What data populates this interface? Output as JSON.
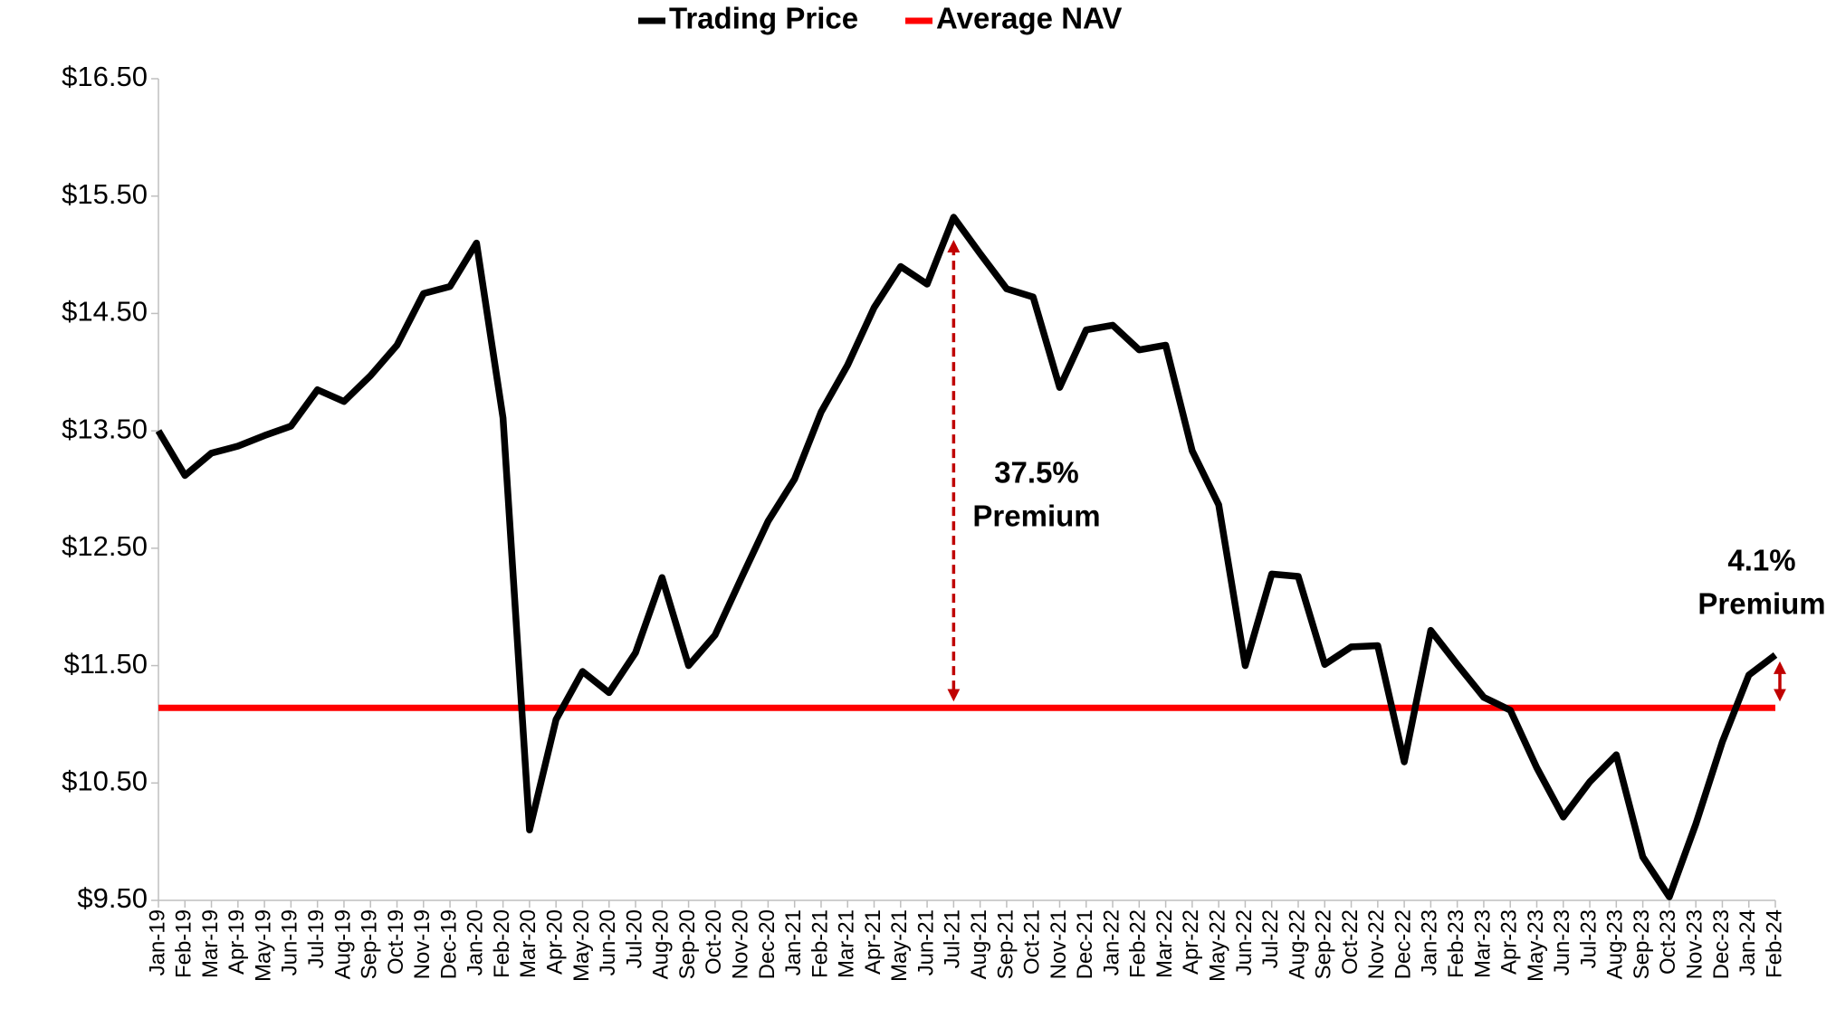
{
  "chart_data": {
    "type": "line",
    "categories": [
      "Jan-19",
      "Feb-19",
      "Mar-19",
      "Apr-19",
      "May-19",
      "Jun-19",
      "Jul-19",
      "Aug-19",
      "Sep-19",
      "Oct-19",
      "Nov-19",
      "Dec-19",
      "Jan-20",
      "Feb-20",
      "Mar-20",
      "Apr-20",
      "May-20",
      "Jun-20",
      "Jul-20",
      "Aug-20",
      "Sep-20",
      "Oct-20",
      "Nov-20",
      "Dec-20",
      "Jan-21",
      "Feb-21",
      "Mar-21",
      "Apr-21",
      "May-21",
      "Jun-21",
      "Jul-21",
      "Aug-21",
      "Sep-21",
      "Oct-21",
      "Nov-21",
      "Dec-21",
      "Jan-22",
      "Feb-22",
      "Mar-22",
      "Apr-22",
      "May-22",
      "Jun-22",
      "Jul-22",
      "Aug-22",
      "Sep-22",
      "Oct-22",
      "Nov-22",
      "Dec-22",
      "Jan-23",
      "Feb-23",
      "Mar-23",
      "Apr-23",
      "May-23",
      "Jun-23",
      "Jul-23",
      "Aug-23",
      "Sep-23",
      "Oct-23",
      "Nov-23",
      "Dec-23",
      "Jan-24",
      "Feb-24"
    ],
    "series": [
      {
        "name": "Trading Price",
        "color": "#000000",
        "values": [
          13.5,
          13.12,
          13.31,
          13.37,
          13.46,
          13.54,
          13.85,
          13.75,
          13.97,
          14.23,
          14.67,
          14.73,
          15.1,
          13.61,
          10.1,
          11.04,
          11.45,
          11.27,
          11.61,
          12.25,
          11.5,
          11.76,
          12.25,
          12.73,
          13.09,
          13.66,
          14.06,
          14.55,
          14.9,
          14.75,
          15.32,
          15.01,
          14.71,
          14.64,
          13.87,
          14.36,
          14.4,
          14.19,
          14.23,
          13.33,
          12.87,
          11.5,
          12.28,
          12.26,
          11.51,
          11.66,
          11.67,
          10.68,
          11.8,
          11.51,
          11.23,
          11.12,
          10.63,
          10.21,
          10.51,
          10.74,
          9.87,
          9.53,
          10.15,
          10.85,
          11.42,
          11.59
        ]
      },
      {
        "name": "Average NAV",
        "color": "#ff0000",
        "values": [
          11.14,
          11.14,
          11.14,
          11.14,
          11.14,
          11.14,
          11.14,
          11.14,
          11.14,
          11.14,
          11.14,
          11.14,
          11.14,
          11.14,
          11.14,
          11.14,
          11.14,
          11.14,
          11.14,
          11.14,
          11.14,
          11.14,
          11.14,
          11.14,
          11.14,
          11.14,
          11.14,
          11.14,
          11.14,
          11.14,
          11.14,
          11.14,
          11.14,
          11.14,
          11.14,
          11.14,
          11.14,
          11.14,
          11.14,
          11.14,
          11.14,
          11.14,
          11.14,
          11.14,
          11.14,
          11.14,
          11.14,
          11.14,
          11.14,
          11.14,
          11.14,
          11.14,
          11.14,
          11.14,
          11.14,
          11.14,
          11.14,
          11.14,
          11.14,
          11.14,
          11.14,
          11.14
        ]
      }
    ],
    "ylim": [
      9.5,
      16.5
    ],
    "yticks": [
      {
        "value": 9.5,
        "label": "$9.50"
      },
      {
        "value": 10.5,
        "label": "$10.50"
      },
      {
        "value": 11.5,
        "label": "$11.50"
      },
      {
        "value": 12.5,
        "label": "$12.50"
      },
      {
        "value": 13.5,
        "label": "$13.50"
      },
      {
        "value": 14.5,
        "label": "$14.50"
      },
      {
        "value": 15.5,
        "label": "$15.50"
      },
      {
        "value": 16.5,
        "label": "$16.50"
      }
    ],
    "legend": "top",
    "annotations": [
      {
        "lines": [
          "37.5%",
          "Premium"
        ]
      },
      {
        "lines": [
          "4.1%",
          "Premium"
        ]
      }
    ]
  }
}
